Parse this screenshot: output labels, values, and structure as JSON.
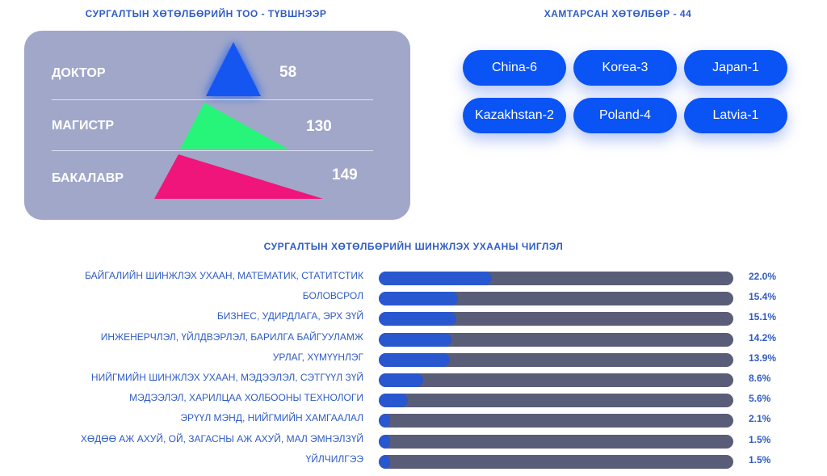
{
  "levels": {
    "title": "СУРГАЛТЫН ХӨТӨЛБӨРИЙН ТОО - ТҮВШНЭЭР",
    "items": [
      {
        "label": "ДОКТОР",
        "value": "58",
        "color": "#1457f0"
      },
      {
        "label": "МАГИСТР",
        "value": "130",
        "color": "#27f57a"
      },
      {
        "label": "БАКАЛАВР",
        "value": "149",
        "color": "#f0157a"
      }
    ]
  },
  "partners": {
    "title": "ХАМТАРСАН ХӨТӨЛБӨР - 44",
    "items": [
      "China-6",
      "Korea-3",
      "Japan-1",
      "Kazakhstan-2",
      "Poland-4",
      "Latvia-1"
    ]
  },
  "chart_data": {
    "type": "bar",
    "title": "СУРГАЛТЫН ХӨТӨЛБӨРИЙН ШИНЖЛЭХ УХААНЫ ЧИГЛЭЛ",
    "unit": "%",
    "max": 100,
    "categories": [
      "БАЙГАЛИЙН ШИНЖЛЭХ УХААН, МАТЕМАТИК, СТАТИТСТИК",
      "БОЛОВСРОЛ",
      "БИЗНЕС, УДИРДЛАГА,  ЭРХ ЗҮЙ",
      "ИНЖЕНЕРЧЛЭЛ, ҮЙЛДВЭРЛЭЛ, БАРИЛГА БАЙГУУЛАМЖ",
      "УРЛАГ, ХҮМҮҮНЛЭГ",
      "НИЙГМИЙН ШИНЖЛЭХ УХААН, МЭДЭЭЛЭЛ, СЭТГҮҮЛ ЗҮЙ",
      "МЭДЭЭЛЭЛ, ХАРИЛЦАА ХОЛБООНЫ ТЕХНОЛОГИ",
      "ЭРҮҮЛ МЭНД, НИЙГМИЙН ХАМГААЛАЛ",
      "ХӨДӨӨ АЖ АХУЙ, ОЙ, ЗАГАСНЫ АЖ АХУЙ, МАЛ ЭМНЭЛЗҮЙ",
      "ҮЙЛЧИЛГЭЭ"
    ],
    "values": [
      22.0,
      15.4,
      15.1,
      14.2,
      13.9,
      8.6,
      5.6,
      2.1,
      1.5,
      1.5
    ],
    "value_labels": [
      "22.0%",
      "15.4%",
      "15.1%",
      "14.2%",
      "13.9%",
      "8.6%",
      "5.6%",
      "2.1%",
      "1.5%",
      "1.5%"
    ],
    "track_color": "#5a5d78",
    "fill_color": "#2857d0"
  }
}
